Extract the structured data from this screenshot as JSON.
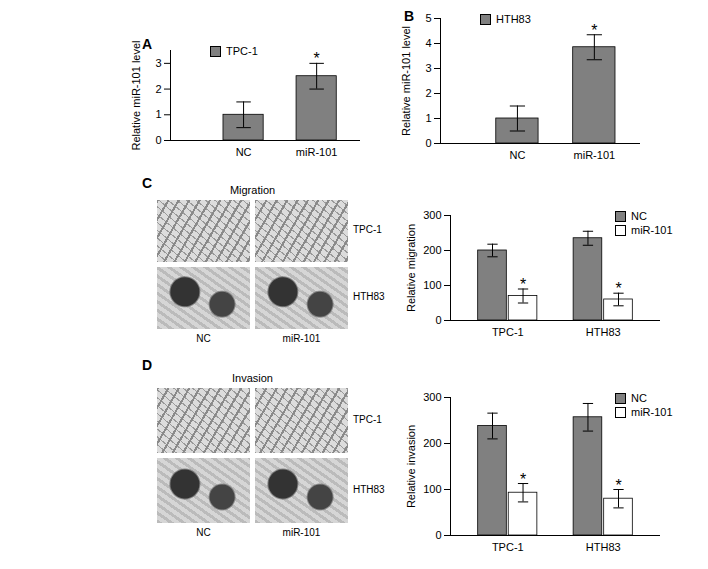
{
  "chart_data": [
    {
      "panel": "A",
      "type": "bar",
      "categories": [
        "NC",
        "miR-101"
      ],
      "series": [
        {
          "name": "TPC-1",
          "color": "#808080",
          "values": [
            1,
            2.5
          ],
          "errors": [
            0.5,
            0.5
          ]
        }
      ],
      "y_label": "Relative miR-101 level",
      "ylim": [
        0,
        3.5
      ],
      "yticks": [
        0,
        1,
        2,
        3
      ],
      "legend": "top-left",
      "annotations": [
        {
          "text": "*",
          "category": "miR-101",
          "series": "TPC-1"
        }
      ]
    },
    {
      "panel": "B",
      "type": "bar",
      "categories": [
        "NC",
        "miR-101"
      ],
      "series": [
        {
          "name": "HTH83",
          "color": "#808080",
          "values": [
            1,
            3.85
          ],
          "errors": [
            0.5,
            0.5
          ]
        }
      ],
      "y_label": "Relative miR-101 level",
      "ylim": [
        0,
        5
      ],
      "yticks": [
        0,
        1,
        2,
        3,
        4,
        5
      ],
      "legend": "top-left",
      "annotations": [
        {
          "text": "*",
          "category": "miR-101",
          "series": "HTH83"
        }
      ]
    },
    {
      "panel": "C",
      "type": "bar",
      "title": "Migration",
      "images": {
        "row_labels": [
          "TPC-1",
          "HTH83"
        ],
        "col_labels": [
          "NC",
          "miR-101"
        ]
      },
      "categories": [
        "TPC-1",
        "HTH83"
      ],
      "series": [
        {
          "name": "NC",
          "color": "#808080",
          "values": [
            200,
            235
          ],
          "errors": [
            18,
            20
          ]
        },
        {
          "name": "miR-101",
          "color": "#ffffff",
          "values": [
            70,
            60
          ],
          "errors": [
            20,
            18
          ]
        }
      ],
      "y_label": "Relative migration",
      "ylim": [
        0,
        300
      ],
      "yticks": [
        0,
        100,
        200,
        300
      ],
      "legend": "top-right",
      "annotations": [
        {
          "text": "*",
          "category": "TPC-1",
          "series": "miR-101"
        },
        {
          "text": "*",
          "category": "HTH83",
          "series": "miR-101"
        }
      ]
    },
    {
      "panel": "D",
      "type": "bar",
      "title": "Invasion",
      "images": {
        "row_labels": [
          "TPC-1",
          "HTH83"
        ],
        "col_labels": [
          "NC",
          "miR-101"
        ]
      },
      "categories": [
        "TPC-1",
        "HTH83"
      ],
      "series": [
        {
          "name": "NC",
          "color": "#808080",
          "values": [
            238,
            257
          ],
          "errors": [
            28,
            30
          ]
        },
        {
          "name": "miR-101",
          "color": "#ffffff",
          "values": [
            93,
            80
          ],
          "errors": [
            20,
            20
          ]
        }
      ],
      "y_label": "Relative invasion",
      "ylim": [
        0,
        300
      ],
      "yticks": [
        0,
        100,
        200,
        300
      ],
      "legend": "top-right",
      "annotations": [
        {
          "text": "*",
          "category": "TPC-1",
          "series": "miR-101"
        },
        {
          "text": "*",
          "category": "HTH83",
          "series": "miR-101"
        }
      ]
    }
  ]
}
